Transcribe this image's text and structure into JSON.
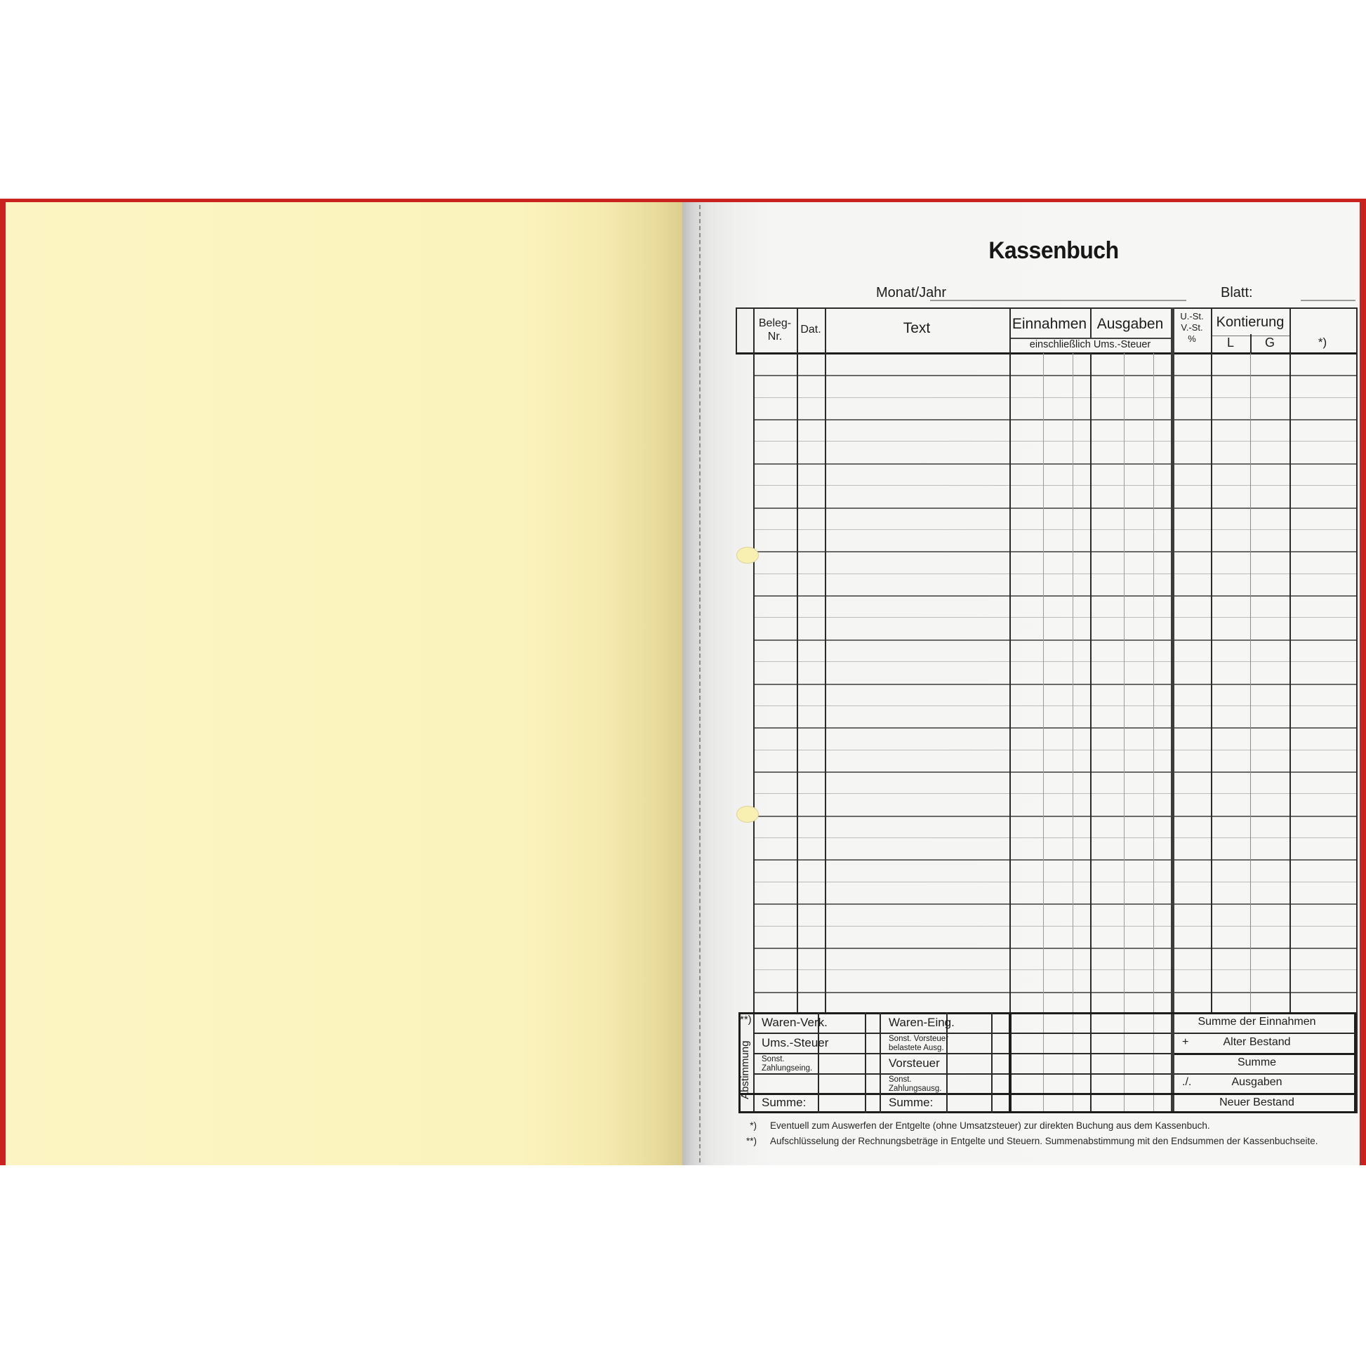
{
  "page": {
    "title": "Kassenbuch",
    "monat_jahr_label": "Monat/Jahr",
    "blatt_label": "Blatt:"
  },
  "table": {
    "rows": 30,
    "header": {
      "beleg": "Beleg-\nNr.",
      "dat": "Dat.",
      "text": "Text",
      "einnahmen": "Einnahmen",
      "ausgaben": "Ausgaben",
      "incl_note": "einschließlich Ums.-Steuer",
      "ust": "U.-St.\nV.-St.\n%",
      "kontierung": "Kontierung",
      "kont_l": "L",
      "kont_g": "G",
      "star": "*)"
    }
  },
  "abstimmung": {
    "marker": "**)",
    "label": "Abstimmung",
    "left_rows": [
      "Waren-Verk.",
      "Ums.-Steuer",
      "Sonst.\nZahlungseing.",
      "",
      "Summe:"
    ],
    "right_rows": [
      "Waren-Eing.",
      "Sonst. Vorsteuer\nbelastete Ausg.",
      "Vorsteuer",
      "Sonst.\nZahlungsausg.",
      "Summe:"
    ]
  },
  "summary": {
    "rows": [
      {
        "sym": "",
        "label": "Summe der Einnahmen"
      },
      {
        "sym": "+",
        "label": "Alter Bestand"
      },
      {
        "sym": "",
        "label": "Summe"
      },
      {
        "sym": "./.",
        "label": "Ausgaben"
      },
      {
        "sym": "",
        "label": "Neuer Bestand"
      }
    ]
  },
  "footnotes": [
    {
      "marker": "*)",
      "text": "Eventuell zum Auswerfen der Entgelte (ohne Umsatzsteuer) zur direkten Buchung aus dem Kassenbuch."
    },
    {
      "marker": "**)",
      "text": "Aufschlüsselung der Rechnungsbeträge in Entgelte und Steuern. Summenabstimmung mit den Endsummen der Kassenbuchseite."
    }
  ],
  "colors": {
    "cover_red": "#c8231e",
    "yellow_page": "#fbf3bd",
    "white_page": "#f5f5f4",
    "hole_yellow": "#f8f0b0",
    "line_dark": "#2a2a2a"
  }
}
